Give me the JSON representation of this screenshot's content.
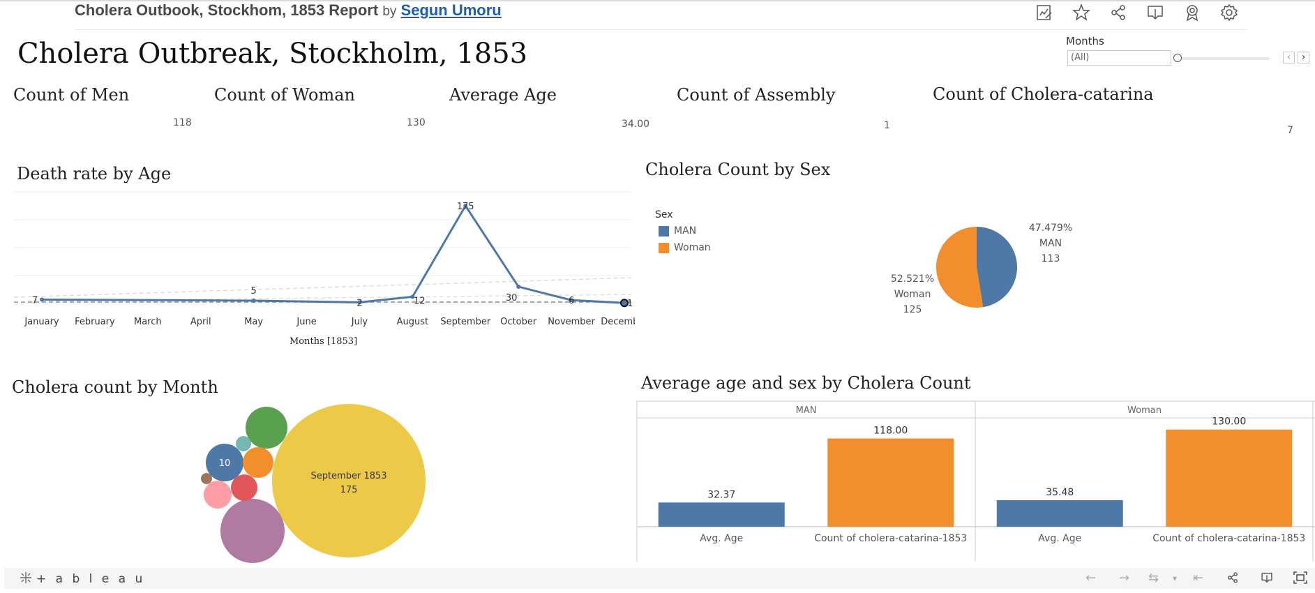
{
  "header": {
    "report_title": "Cholera Outbook, Stockhom, 1853 Report",
    "by": "by",
    "author": "Segun Umoru",
    "toolbar_icons": [
      "edit-icon",
      "star-icon",
      "share-icon",
      "download-icon",
      "badge-icon",
      "gear-icon"
    ]
  },
  "dashboard_title": "Cholera Outbreak, Stockholm, 1853",
  "filter": {
    "label": "Months",
    "value": "(All)",
    "prev": "‹",
    "next": "›"
  },
  "kpis": [
    {
      "title": "Count of Men",
      "value": "118"
    },
    {
      "title": "Count of Woman",
      "value": "130"
    },
    {
      "title": "Average Age",
      "value": "34.00"
    },
    {
      "title": "Count of Assembly",
      "value": "1"
    },
    {
      "title": "Count of Cholera-catarina",
      "value": "7"
    }
  ],
  "death_rate": {
    "title": "Death rate by Age",
    "xlabel": "Months [1853]"
  },
  "pie": {
    "title": "Cholera Count by Sex",
    "legend_title": "Sex",
    "man_label_pct": "47.479%",
    "man_label_name": "MAN",
    "man_label_count": "113",
    "woman_label_pct": "52.521%",
    "woman_label_name": "Woman",
    "woman_label_count": "125"
  },
  "bubble": {
    "title": "Cholera count by Month",
    "big_label_line1": "September 1853",
    "big_label_line2": "175",
    "small_label": "10"
  },
  "bars": {
    "title": "Average age and sex by Cholera Count"
  },
  "footer": {
    "logo": "+ a b l e a u"
  },
  "chart_data": [
    {
      "type": "line",
      "title": "Death rate by Age",
      "xlabel": "Months [1853]",
      "categories": [
        "January",
        "February",
        "March",
        "April",
        "May",
        "June",
        "July",
        "August",
        "September",
        "October",
        "November",
        "December"
      ],
      "series": [
        {
          "values": [
            7,
            null,
            null,
            null,
            5,
            null,
            2,
            12,
            175,
            30,
            6,
            1
          ],
          "color": "#4e79a7"
        }
      ],
      "point_labels": [
        {
          "x": "January",
          "label": "7"
        },
        {
          "x": "May",
          "label": "5"
        },
        {
          "x": "July",
          "label": "2"
        },
        {
          "x": "August",
          "label": "12"
        },
        {
          "x": "September",
          "label": "175"
        },
        {
          "x": "October",
          "label": "30"
        },
        {
          "x": "November",
          "label": "6"
        },
        {
          "x": "December",
          "label": "1"
        }
      ],
      "ylim": [
        0,
        200
      ],
      "grid": true
    },
    {
      "type": "pie",
      "title": "Cholera Count by Sex",
      "slices": [
        {
          "name": "MAN",
          "value": 113,
          "percent": 47.479,
          "color": "#4e79a7"
        },
        {
          "name": "Woman",
          "value": 125,
          "percent": 52.521,
          "color": "#f28e2b"
        }
      ],
      "legend": "left"
    },
    {
      "type": "bubble",
      "title": "Cholera count by Month",
      "bubbles": [
        {
          "label": "September 1853",
          "value": 175,
          "color": "#edc948"
        },
        {
          "label": "",
          "value": 30,
          "color": "#b07aa1"
        },
        {
          "label": "",
          "value": 12,
          "color": "#59a14f"
        },
        {
          "label": "",
          "value": 10,
          "color": "#4e79a7"
        },
        {
          "label": "",
          "value": 7,
          "color": "#f28e2b"
        },
        {
          "label": "",
          "value": 6,
          "color": "#ff9da7"
        },
        {
          "label": "",
          "value": 5,
          "color": "#e15759"
        },
        {
          "label": "",
          "value": 2,
          "color": "#76b7b2"
        },
        {
          "label": "",
          "value": 1,
          "color": "#9c755f"
        }
      ]
    },
    {
      "type": "bar",
      "title": "Average age and sex by Cholera Count",
      "panels": [
        "MAN",
        "Woman"
      ],
      "categories": [
        "Avg. Age",
        "Count of  cholera-catarina-1853"
      ],
      "series": [
        {
          "panel": "MAN",
          "values": [
            32.37,
            118.0
          ],
          "labels": [
            "32.37",
            "118.00"
          ]
        },
        {
          "panel": "Woman",
          "values": [
            35.48,
            130.0
          ],
          "labels": [
            "35.48",
            "130.00"
          ]
        }
      ],
      "colors": [
        "#4e79a7",
        "#f28e2b"
      ],
      "ylim": [
        0,
        140
      ]
    }
  ]
}
